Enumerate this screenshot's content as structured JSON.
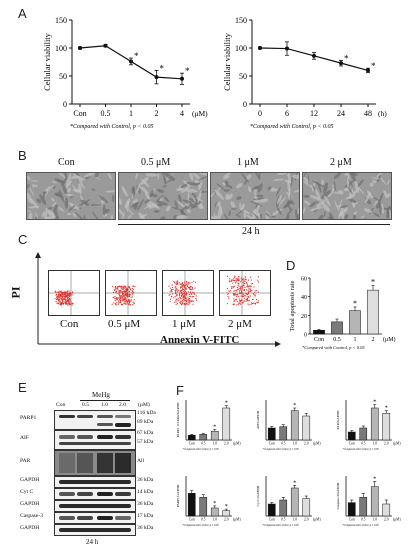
{
  "panels": {
    "A": "A",
    "B": "B",
    "C": "C",
    "D": "D",
    "E": "E",
    "F": "F"
  },
  "chart_data": [
    {
      "type": "line",
      "panel": "A-left",
      "xlabel": "",
      "x_unit": "(μM)",
      "ylabel": "Cellular viability",
      "categories": [
        "Con",
        "0.5",
        "1",
        "2",
        "4"
      ],
      "ylim": [
        0,
        150
      ],
      "yticks": [
        "0",
        "50",
        "100",
        "150"
      ],
      "values": [
        100,
        104,
        76,
        48,
        45
      ],
      "errors": [
        2,
        2,
        6,
        12,
        10
      ],
      "significant": [
        false,
        false,
        true,
        true,
        true
      ],
      "footnote": "*Compared with Control, p < 0.05"
    },
    {
      "type": "line",
      "panel": "A-right",
      "xlabel": "",
      "x_unit": "(h)",
      "ylabel": "Cellular viability",
      "categories": [
        "0",
        "6",
        "12",
        "24",
        "48"
      ],
      "ylim": [
        0,
        150
      ],
      "yticks": [
        "0",
        "50",
        "100",
        "150"
      ],
      "values": [
        100,
        99,
        86,
        73,
        60
      ],
      "errors": [
        2,
        12,
        6,
        5,
        4
      ],
      "significant": [
        false,
        false,
        false,
        true,
        true
      ],
      "footnote": "*Compared with Control, p < 0.05"
    },
    {
      "type": "bar",
      "panel": "D",
      "ylabel": "Total apoptosis rate",
      "categories": [
        "Con",
        "0.5",
        "1",
        "2"
      ],
      "x_unit": "(μM)",
      "ylim": [
        0,
        60
      ],
      "yticks": [
        "0",
        "20",
        "40",
        "60"
      ],
      "values": [
        4,
        13,
        25,
        47
      ],
      "errors": [
        1,
        3,
        4,
        5
      ],
      "significant": [
        false,
        false,
        true,
        true
      ],
      "footnote": "*Compared with Control, p < 0.05"
    },
    {
      "type": "bar",
      "panel": "F-1",
      "ylabel": "PARP1 116 kDa/GAPDH",
      "categories": [
        "Con",
        "0.5",
        "1.0",
        "2.0"
      ],
      "x_unit": "(μM)",
      "ylim": [
        0,
        2.5
      ],
      "values": [
        0.3,
        0.35,
        0.55,
        2.0
      ],
      "errors": [
        0.05,
        0.05,
        0.1,
        0.15
      ],
      "significant": [
        false,
        false,
        true,
        true
      ],
      "footnote": "*Compared with Control, p < 0.05"
    },
    {
      "type": "bar",
      "panel": "F-2",
      "ylabel": "AIF/GAPDH",
      "categories": [
        "Con",
        "0.5",
        "1.0",
        "2.0"
      ],
      "x_unit": "(μM)",
      "ylim": [
        0,
        3
      ],
      "values": [
        0.9,
        1.0,
        2.2,
        1.8
      ],
      "errors": [
        0.1,
        0.15,
        0.2,
        0.2
      ],
      "significant": [
        false,
        false,
        true,
        false
      ],
      "footnote": "*Compared with Control, p < 0.05"
    },
    {
      "type": "bar",
      "panel": "F-3",
      "ylabel": "PAR/GAPDH",
      "categories": [
        "Con",
        "0.5",
        "1.0",
        "2.0"
      ],
      "x_unit": "(μM)",
      "ylim": [
        0,
        3
      ],
      "values": [
        0.6,
        0.9,
        2.4,
        2.0
      ],
      "errors": [
        0.1,
        0.15,
        0.25,
        0.2
      ],
      "significant": [
        false,
        false,
        true,
        true
      ],
      "footnote": "*Compared with Control, p < 0.05"
    },
    {
      "type": "bar",
      "panel": "F-4",
      "ylabel": "PARP1/GAPDH",
      "categories": [
        "Con",
        "0.5",
        "1.0",
        "2.0"
      ],
      "x_unit": "(μM)",
      "ylim": [
        0,
        1.5
      ],
      "values": [
        0.85,
        0.7,
        0.3,
        0.2
      ],
      "errors": [
        0.1,
        0.1,
        0.08,
        0.06
      ],
      "significant": [
        false,
        false,
        true,
        true
      ],
      "footnote": "*Compared with Control, p < 0.05"
    },
    {
      "type": "bar",
      "panel": "F-5",
      "ylabel": "Cyt C/GAPDH",
      "categories": [
        "Con",
        "0.5",
        "1.0",
        "2.0"
      ],
      "x_unit": "(μM)",
      "ylim": [
        0,
        3
      ],
      "values": [
        0.9,
        1.2,
        2.1,
        1.3
      ],
      "errors": [
        0.1,
        0.2,
        0.2,
        0.2
      ],
      "significant": [
        false,
        false,
        true,
        false
      ],
      "footnote": "*Compared with Control, p < 0.05"
    },
    {
      "type": "bar",
      "panel": "F-6",
      "ylabel": "Caspase-3/GAPDH",
      "categories": [
        "Con",
        "0.5",
        "1.0",
        "2.0"
      ],
      "x_unit": "(μM)",
      "ylim": [
        0,
        3
      ],
      "values": [
        1.0,
        1.4,
        2.2,
        0.9
      ],
      "errors": [
        0.2,
        0.3,
        0.4,
        0.3
      ],
      "significant": [
        false,
        false,
        true,
        false
      ],
      "footnote": "*Compared with Control, p < 0.05"
    }
  ],
  "micrographs": {
    "labels": [
      "Con",
      "0.5 μM",
      "1 μM",
      "2 μM"
    ],
    "duration": "24 h"
  },
  "flow": {
    "ylabel": "PI",
    "xlabel": "Annexin V-FITC",
    "labels": [
      "Con",
      "0.5 μM",
      "1 μM",
      "2 μM"
    ]
  },
  "western": {
    "treatment": "MeHg",
    "unit": "(μM)",
    "lanes": [
      "Con",
      "0.5",
      "1.0",
      "2.0"
    ],
    "rows": [
      {
        "name": "PARP1",
        "kda": [
          "116 kDa",
          "89 kDa"
        ]
      },
      {
        "name": "AIF",
        "kda": [
          "67 kDa",
          "57 kDa"
        ]
      },
      {
        "name": "PAR",
        "kda": [
          "All"
        ]
      },
      {
        "name": "GAPDH",
        "kda": [
          "36 kDa"
        ]
      },
      {
        "name": "Cyt C",
        "kda": [
          "14 kDa"
        ]
      },
      {
        "name": "GAPDH",
        "kda": [
          "36 kDa"
        ]
      },
      {
        "name": "Caspase-3",
        "kda": [
          "17 kDa"
        ]
      },
      {
        "name": "GAPDH",
        "kda": [
          "36 kDa"
        ]
      }
    ],
    "duration": "24 h"
  },
  "colors": {
    "bar_fills": [
      "#111111",
      "#7a7a7a",
      "#b5b5b5",
      "#dedede"
    ],
    "facs_dots": "#e0302a"
  }
}
